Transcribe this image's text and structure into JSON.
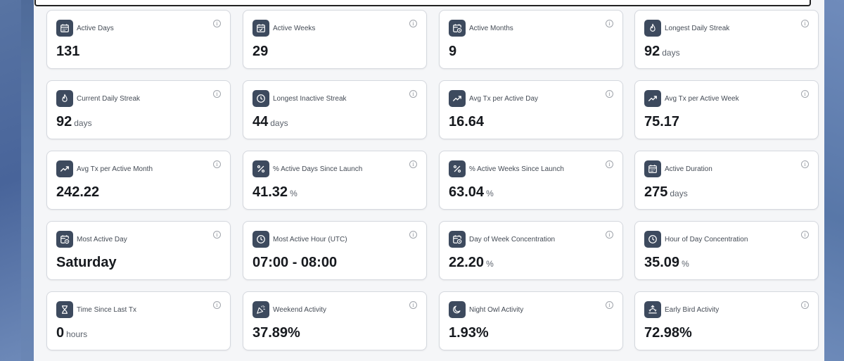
{
  "cards": [
    {
      "label": "Active Days",
      "value": "131",
      "unit": "",
      "icon": "calendar-icon"
    },
    {
      "label": "Active Weeks",
      "value": "29",
      "unit": "",
      "icon": "calendar-check-icon"
    },
    {
      "label": "Active Months",
      "value": "9",
      "unit": "",
      "icon": "calendar-clock-icon"
    },
    {
      "label": "Longest Daily Streak",
      "value": "92",
      "unit": "days",
      "icon": "flame-icon"
    },
    {
      "label": "Current Daily Streak",
      "value": "92",
      "unit": "days",
      "icon": "flame-icon"
    },
    {
      "label": "Longest Inactive Streak",
      "value": "44",
      "unit": "days",
      "icon": "clock-icon"
    },
    {
      "label": "Avg Tx per Active Day",
      "value": "16.64",
      "unit": "",
      "icon": "trending-up-icon"
    },
    {
      "label": "Avg Tx per Active Week",
      "value": "75.17",
      "unit": "",
      "icon": "trending-up-icon"
    },
    {
      "label": "Avg Tx per Active Month",
      "value": "242.22",
      "unit": "",
      "icon": "trending-up-icon"
    },
    {
      "label": "% Active Days Since Launch",
      "value": "41.32",
      "unit": "%",
      "icon": "percent-icon"
    },
    {
      "label": "% Active Weeks Since Launch",
      "value": "63.04",
      "unit": "%",
      "icon": "percent-icon"
    },
    {
      "label": "Active Duration",
      "value": "275",
      "unit": "days",
      "icon": "calendar-icon"
    },
    {
      "label": "Most Active Day",
      "value": "Saturday",
      "unit": "",
      "icon": "calendar-clock-icon"
    },
    {
      "label": "Most Active Hour (UTC)",
      "value": "07:00 - 08:00",
      "unit": "",
      "icon": "clock-icon"
    },
    {
      "label": "Day of Week Concentration",
      "value": "22.20",
      "unit": "%",
      "icon": "calendar-clock-icon"
    },
    {
      "label": "Hour of Day Concentration",
      "value": "35.09",
      "unit": "%",
      "icon": "clock-icon"
    },
    {
      "label": "Time Since Last Tx",
      "value": "0",
      "unit": "hours",
      "icon": "hourglass-icon"
    },
    {
      "label": "Weekend Activity",
      "value": "37.89%",
      "unit": "",
      "icon": "party-popper-icon"
    },
    {
      "label": "Night Owl Activity",
      "value": "1.93%",
      "unit": "",
      "icon": "moon-icon"
    },
    {
      "label": "Early Bird Activity",
      "value": "72.98%",
      "unit": "",
      "icon": "sunrise-icon"
    }
  ],
  "info_glyph": "i"
}
